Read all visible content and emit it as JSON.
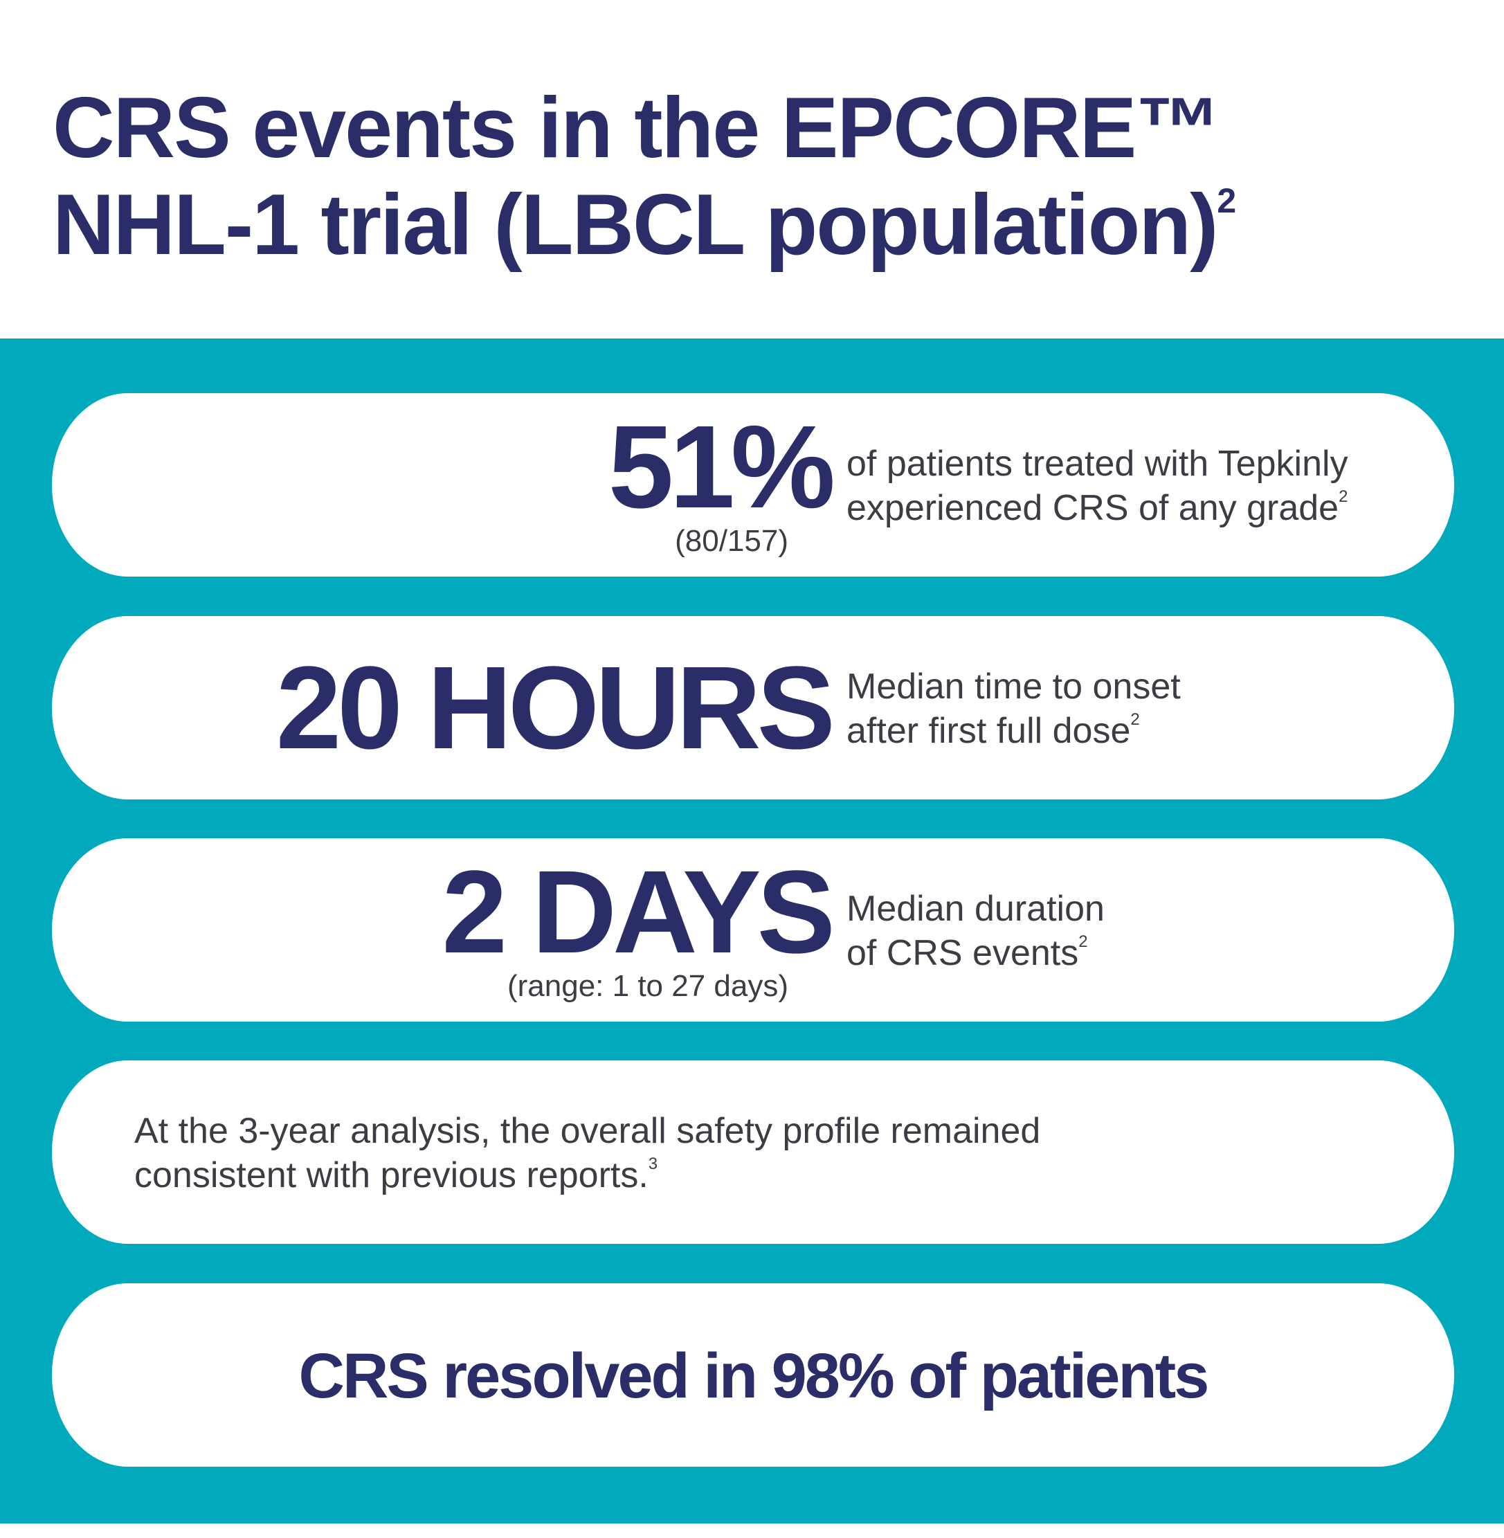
{
  "title": {
    "line1": "CRS events in the EPCORE™",
    "line2": "NHL-1 trial (LBCL population)",
    "ref": "2"
  },
  "colors": {
    "navy": "#2b2d69",
    "teal": "#00a9bc",
    "text": "#3c3c44"
  },
  "cards": [
    {
      "value": "51%",
      "sub": "(80/157)",
      "desc_line1": "of patients treated with Tepkinly",
      "desc_line2": "experienced CRS of any grade",
      "ref": "2"
    },
    {
      "value": "20 HOURS",
      "desc_line1": "Median time to onset",
      "desc_line2": "after first full dose",
      "ref": "2"
    },
    {
      "value": "2 DAYS",
      "sub": "(range: 1 to 27 days)",
      "desc_line1": "Median duration",
      "desc_line2": "of CRS events",
      "ref": "2"
    }
  ],
  "safety": {
    "line1": "At the 3-year analysis, the overall safety profile remained",
    "line2": "consistent with previous reports.",
    "ref": "3"
  },
  "resolved": "CRS resolved in 98% of patients"
}
